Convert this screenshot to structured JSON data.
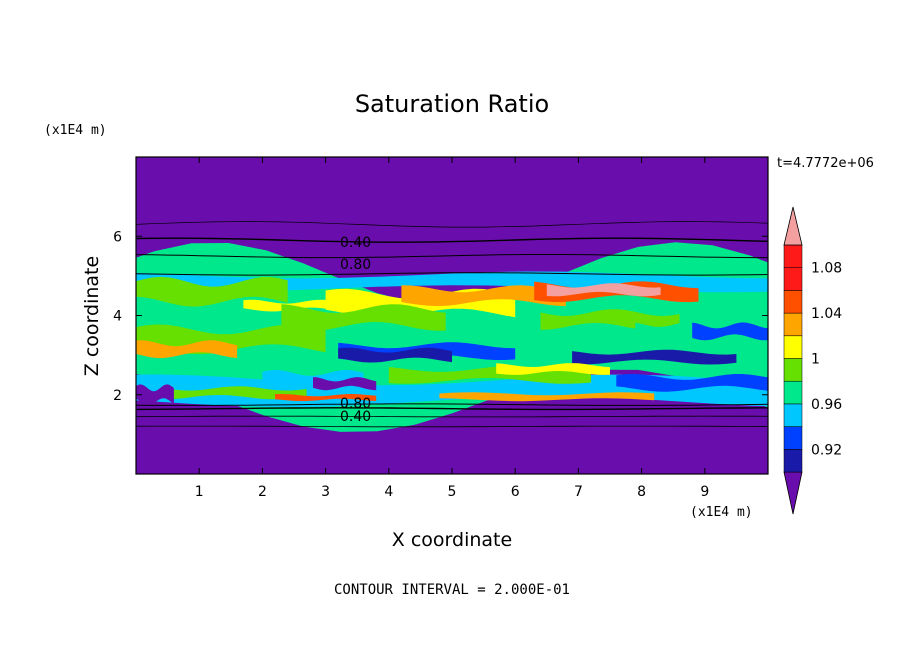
{
  "chart_data": {
    "type": "heatmap",
    "title": "Saturation Ratio",
    "xlabel": "X coordinate",
    "ylabel": "Z coordinate",
    "x_unit": "(x1E4 m)",
    "y_unit": "(x1E4 m)",
    "time_label": "t=4.7772e+06",
    "footer": "CONTOUR INTERVAL = 2.000E-01",
    "xlim": [
      0,
      10
    ],
    "ylim": [
      0,
      8
    ],
    "x_ticks": [
      "1",
      "2",
      "3",
      "4",
      "5",
      "6",
      "7",
      "8",
      "9"
    ],
    "y_ticks": [
      "2",
      "4",
      "6"
    ],
    "colorbar": {
      "levels": [
        0.9,
        0.92,
        0.94,
        0.96,
        0.98,
        1.0,
        1.02,
        1.04,
        1.06,
        1.08,
        1.1
      ],
      "tick_labels": [
        "0.92",
        "0.96",
        "1",
        "1.04",
        "1.08"
      ],
      "colors": [
        "#6a0dad",
        "#1a1aa8",
        "#0040ff",
        "#00c8ff",
        "#00e88c",
        "#66e000",
        "#ffff00",
        "#ffa500",
        "#ff5000",
        "#ff1a1a",
        "#f5a0a0"
      ]
    },
    "contour_labels": [
      "0.40",
      "0.80",
      "0.80",
      "0.40"
    ],
    "background_color": "#6a0dad"
  }
}
